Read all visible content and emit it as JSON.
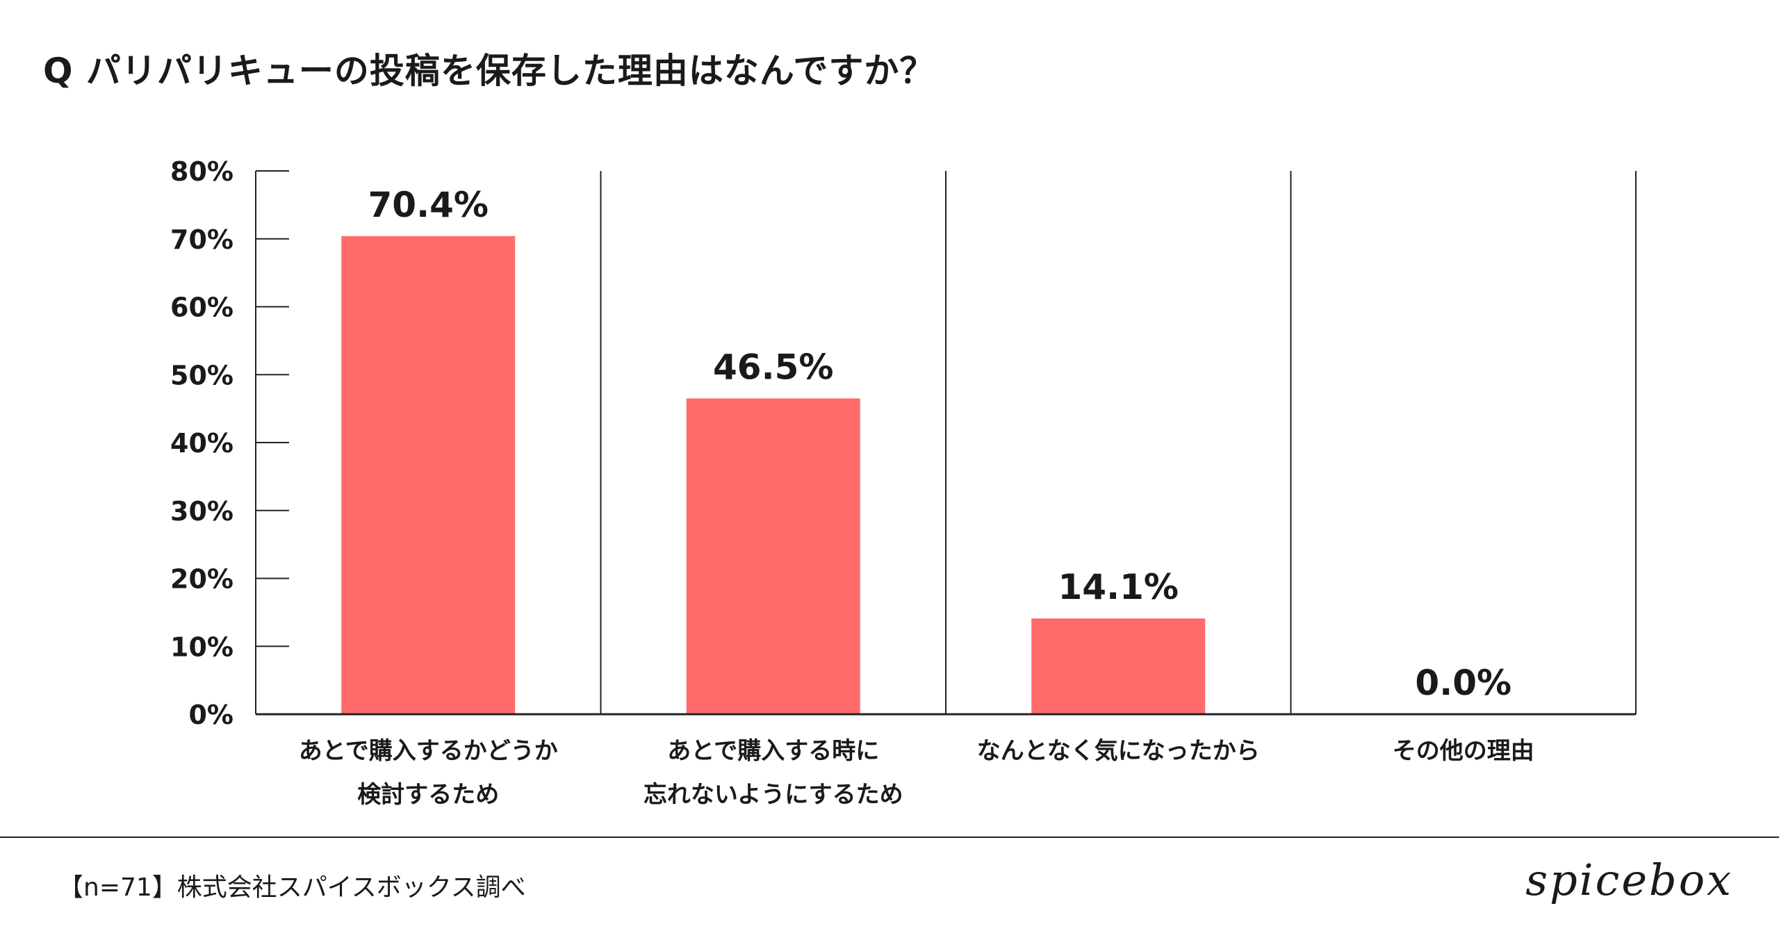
{
  "title": "Q パリパリキューの投稿を保存した理由はなんですか？",
  "footer": {
    "source": "【n=71】株式会社スパイスボックス調べ",
    "brand": "spicebox"
  },
  "colors": {
    "bar": "#ff6b6b",
    "axis": "#222222"
  },
  "chart_data": {
    "type": "bar",
    "title": "Q パリパリキューの投稿を保存した理由はなんですか？",
    "categories": [
      [
        "あとで購入するかどうか",
        "検討するため"
      ],
      [
        "あとで購入する時に",
        "忘れないようにするため"
      ],
      [
        "なんとなく気になったから"
      ],
      [
        "その他の理由"
      ]
    ],
    "values": [
      70.4,
      46.5,
      14.1,
      0.0
    ],
    "value_labels": [
      "70.4%",
      "46.5%",
      "14.1%",
      "0.0%"
    ],
    "ylim": [
      0,
      80
    ],
    "yticks": [
      0,
      10,
      20,
      30,
      40,
      50,
      60,
      70,
      80
    ],
    "ytick_labels": [
      "0%",
      "10%",
      "20%",
      "30%",
      "40%",
      "50%",
      "60%",
      "70%",
      "80%"
    ],
    "xlabel": "",
    "ylabel": "",
    "grid": false,
    "legend": "none"
  }
}
